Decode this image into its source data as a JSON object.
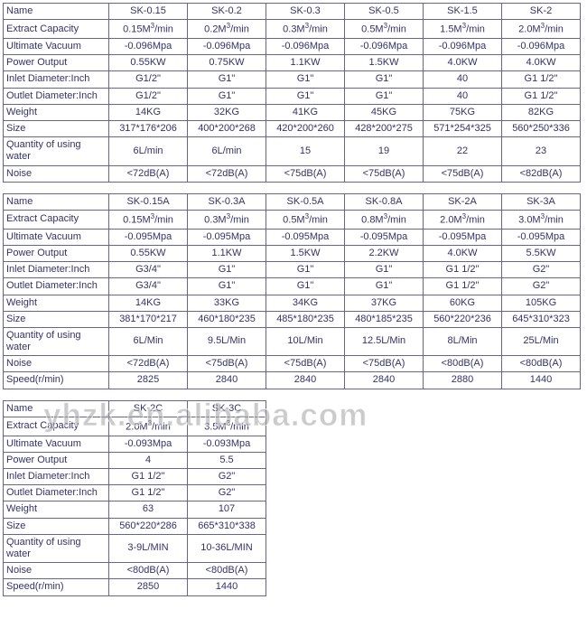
{
  "watermark": "yhzk.en.alibaba.com",
  "col_widths": {
    "hdr": 117,
    "data6": 87,
    "data2": 87
  },
  "tables": [
    {
      "cols": 6,
      "rows": [
        {
          "hdr": "Name",
          "cells": [
            "SK-0.15",
            "SK-0.2",
            "SK-0.3",
            "SK-0.5",
            "SK-1.5",
            "SK-2"
          ]
        },
        {
          "hdr": "Extract Capacity",
          "cells": [
            "0.15M³/min",
            "0.2M³/min",
            "0.3M³/min",
            "0.5M³/min",
            "1.5M³/min",
            "2.0M³/min"
          ]
        },
        {
          "hdr": "Ultimate Vacuum",
          "cells": [
            "-0.096Mpa",
            "-0.096Mpa",
            "-0.096Mpa",
            "-0.096Mpa",
            "-0.096Mpa",
            "-0.096Mpa"
          ]
        },
        {
          "hdr": "Power Output",
          "cells": [
            "0.55KW",
            "0.75KW",
            "1.1KW",
            "1.5KW",
            "4.0KW",
            "4.0KW"
          ]
        },
        {
          "hdr": "Inlet Diameter:Inch",
          "cells": [
            "G1/2\"",
            "G1\"",
            "G1\"",
            "G1\"",
            "40",
            "G1 1/2\""
          ]
        },
        {
          "hdr": "Outlet Diameter:Inch",
          "cells": [
            "G1/2\"",
            "G1\"",
            "G1\"",
            "G1\"",
            "40",
            "G1 1/2\""
          ]
        },
        {
          "hdr": "Weight",
          "cells": [
            "14KG",
            "32KG",
            "41KG",
            "45KG",
            "75KG",
            "82KG"
          ]
        },
        {
          "hdr": "Size",
          "cells": [
            "317*176*206",
            "400*200*268",
            "420*200*260",
            "428*200*275",
            "571*254*325",
            "560*250*336"
          ]
        },
        {
          "hdr": "Quantity of using water",
          "cells": [
            "6L/min",
            "6L/min",
            "15",
            "19",
            "22",
            "23"
          ]
        },
        {
          "hdr": "Noise",
          "cells": [
            "<72dB(A)",
            "<72dB(A)",
            "<75dB(A)",
            "<75dB(A)",
            "<75dB(A)",
            "<82dB(A)"
          ]
        }
      ]
    },
    {
      "cols": 6,
      "rows": [
        {
          "hdr": "Name",
          "cells": [
            "SK-0.15A",
            "SK-0.3A",
            "SK-0.5A",
            "SK-0.8A",
            "SK-2A",
            "SK-3A"
          ]
        },
        {
          "hdr": "Extract Capacity",
          "cells": [
            "0.15M³/min",
            "0.3M³/min",
            "0.5M³/min",
            "0.8M³/min",
            "2.0M³/min",
            "3.0M³/min"
          ]
        },
        {
          "hdr": "Ultimate Vacuum",
          "cells": [
            "-0.095Mpa",
            "-0.095Mpa",
            "-0.095Mpa",
            "-0.095Mpa",
            "-0.095Mpa",
            "-0.095Mpa"
          ]
        },
        {
          "hdr": "Power Output",
          "cells": [
            "0.55KW",
            "1.1KW",
            "1.5KW",
            "2.2KW",
            "4.0KW",
            "5.5KW"
          ]
        },
        {
          "hdr": "Inlet Diameter:Inch",
          "cells": [
            "G3/4\"",
            "G1\"",
            "G1\"",
            "G1\"",
            "G1 1/2\"",
            "G2\""
          ]
        },
        {
          "hdr": "Outlet Diameter:Inch",
          "cells": [
            "G3/4\"",
            "G1\"",
            "G1\"",
            "G1\"",
            "G1 1/2\"",
            "G2\""
          ]
        },
        {
          "hdr": "Weight",
          "cells": [
            "14KG",
            "33KG",
            "34KG",
            "37KG",
            "60KG",
            "105KG"
          ]
        },
        {
          "hdr": "Size",
          "cells": [
            "381*170*217",
            "460*180*235",
            "485*180*235",
            "480*185*235",
            "560*220*236",
            "645*310*323"
          ]
        },
        {
          "hdr": "Quantity of using water",
          "cells": [
            "6L/Min",
            "9.5L/Min",
            "10L/Min",
            "12.5L/Min",
            "8L/Min",
            "25L/Min"
          ]
        },
        {
          "hdr": "Noise",
          "cells": [
            "<72dB(A)",
            "<75dB(A)",
            "<75dB(A)",
            "<75dB(A)",
            "<80dB(A)",
            "<80dB(A)"
          ]
        },
        {
          "hdr": "Speed(r/min)",
          "cells": [
            "2825",
            "2840",
            "2840",
            "2840",
            "2880",
            "1440"
          ]
        }
      ]
    },
    {
      "cols": 2,
      "rows": [
        {
          "hdr": "Name",
          "cells": [
            "SK-2C",
            "SK-3C"
          ]
        },
        {
          "hdr": "Extract Capacity",
          "cells": [
            "2.0M³/min",
            "3.5M³/min"
          ]
        },
        {
          "hdr": "Ultimate Vacuum",
          "cells": [
            "-0.093Mpa",
            "-0.093Mpa"
          ]
        },
        {
          "hdr": "Power Output",
          "cells": [
            "4",
            "5.5"
          ]
        },
        {
          "hdr": "Inlet Diameter:Inch",
          "cells": [
            "G1 1/2\"",
            "G2\""
          ]
        },
        {
          "hdr": "Outlet Diameter:Inch",
          "cells": [
            "G1 1/2\"",
            "G2\""
          ]
        },
        {
          "hdr": "Weight",
          "cells": [
            "63",
            "107"
          ]
        },
        {
          "hdr": "Size",
          "cells": [
            "560*220*286",
            "665*310*338"
          ]
        },
        {
          "hdr": "Quantity of using water",
          "cells": [
            "3-9L/MIN",
            "10-36L/MIN"
          ]
        },
        {
          "hdr": "Noise",
          "cells": [
            "<80dB(A)",
            "<80dB(A)"
          ]
        },
        {
          "hdr": "Speed(r/min)",
          "cells": [
            "2850",
            "1440"
          ]
        }
      ]
    }
  ]
}
